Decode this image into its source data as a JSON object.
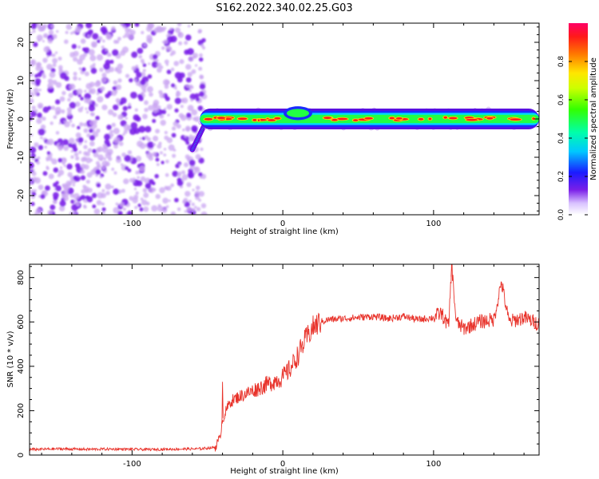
{
  "title": "S162.2022.340.02.25.G03",
  "colors": {
    "snr_line": "#e8322a",
    "scatter_purple": "#7a1fe8",
    "scatter_light": "#c9a6f2",
    "background": "#ffffff"
  },
  "chart_data": [
    {
      "type": "heatmap",
      "title": "",
      "xlabel": "Height of straight line (km)",
      "ylabel": "Frequency (Hz)",
      "xlim": [
        -168,
        170
      ],
      "ylim": [
        -25,
        25
      ],
      "x_ticks": [
        -100,
        0,
        100
      ],
      "y_ticks": [
        -20,
        -10,
        0,
        10,
        20
      ],
      "noise_region_x": [
        -168,
        -55
      ],
      "transition_x": [
        -60,
        -50
      ],
      "signal_band": {
        "x": [
          -55,
          170
        ],
        "frequency_center": 0,
        "frequency_halfwidth": 2
      },
      "colorbar": {
        "label": "Normalized spectral amplitude",
        "range": [
          0,
          1
        ],
        "ticks": [
          0.0,
          0.2,
          0.4,
          0.6,
          0.8
        ],
        "colormap": "rainbow"
      }
    },
    {
      "type": "line",
      "title": "",
      "xlabel": "Height of straight line (km)",
      "ylabel": "SNR (10 * v/v)",
      "xlim": [
        -168,
        170
      ],
      "ylim": [
        0,
        860
      ],
      "x_ticks": [
        -100,
        0,
        100
      ],
      "y_ticks": [
        0,
        200,
        400,
        600,
        800
      ],
      "series": [
        {
          "x": [
            -168,
            -150,
            -130,
            -110,
            -90,
            -70,
            -55,
            -45,
            -42,
            -40,
            -35,
            -30,
            -20,
            -10,
            0,
            5,
            10,
            15,
            20,
            25,
            30,
            40,
            50,
            60,
            70,
            80,
            90,
            100,
            105,
            110,
            112,
            115,
            120,
            130,
            140,
            145,
            150,
            160,
            170
          ],
          "values": [
            25,
            28,
            26,
            27,
            25,
            27,
            28,
            35,
            70,
            160,
            240,
            260,
            290,
            320,
            350,
            390,
            450,
            520,
            575,
            600,
            610,
            615,
            620,
            625,
            615,
            625,
            610,
            620,
            640,
            580,
            860,
            600,
            570,
            600,
            610,
            780,
            600,
            620,
            590
          ]
        }
      ]
    }
  ]
}
